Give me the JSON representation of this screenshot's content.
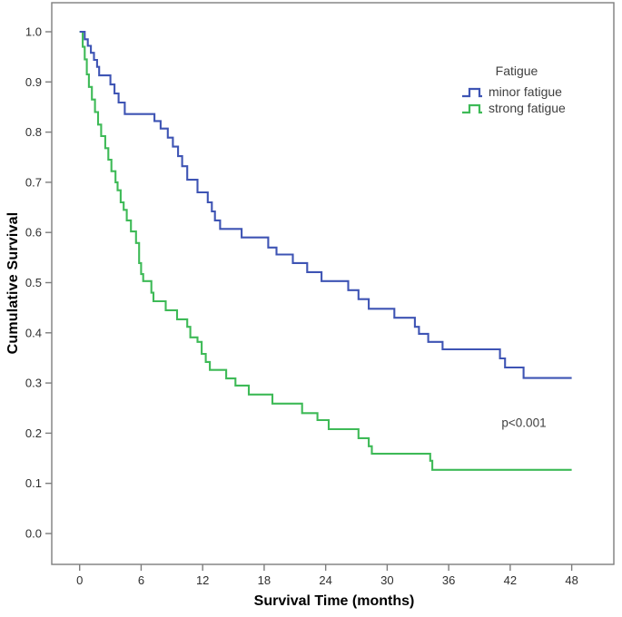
{
  "figure": {
    "y_axis_title": "Cumulative Survival",
    "x_axis_title": "Survival Time (months)",
    "annotation_text": "p<0.001",
    "legend": {
      "title": "Fatigue",
      "entries": [
        {
          "label": "minor fatigue",
          "color": "#3e54b4"
        },
        {
          "label": "strong fatigue",
          "color": "#3eba57"
        }
      ]
    },
    "colors": {
      "frame": "#7d7d7d",
      "tick": "#7d7d7d",
      "tick_label": "#2e2e2e",
      "annotation": "#3f3f3f",
      "background": "#ffffff",
      "minor_fatigue_blue": "#3e54b4",
      "strong_fatigue_green": "#3eba57"
    }
  },
  "chart_data": {
    "type": "line",
    "subtype": "kaplan-meier-step",
    "title": "",
    "xlabel": "Survival Time (months)",
    "ylabel": "Cumulative Survival",
    "xlim": [
      0,
      48
    ],
    "ylim": [
      0.0,
      1.0
    ],
    "x_ticks": [
      0,
      6,
      12,
      18,
      24,
      30,
      36,
      42,
      48
    ],
    "y_ticks": [
      "0.0",
      "0.1",
      "0.2",
      "0.3",
      "0.4",
      "0.5",
      "0.6",
      "0.7",
      "0.8",
      "0.9",
      "1.0"
    ],
    "grid": false,
    "legend_position": "inside-top-right",
    "annotation": {
      "text": "p<0.001",
      "x_month": 43.3,
      "y_survival": 0.22
    },
    "series": [
      {
        "name": "minor fatigue",
        "color": "#3e54b4",
        "end_month": 48,
        "steps": [
          [
            0,
            1.0
          ],
          [
            0.5,
            0.985
          ],
          [
            0.8,
            0.972
          ],
          [
            1.1,
            0.958
          ],
          [
            1.4,
            0.944
          ],
          [
            1.7,
            0.93
          ],
          [
            1.9,
            0.913
          ],
          [
            3.0,
            0.895
          ],
          [
            3.4,
            0.877
          ],
          [
            3.8,
            0.859
          ],
          [
            4.4,
            0.836
          ],
          [
            7.3,
            0.822
          ],
          [
            7.9,
            0.807
          ],
          [
            8.6,
            0.789
          ],
          [
            9.1,
            0.771
          ],
          [
            9.6,
            0.752
          ],
          [
            10.0,
            0.732
          ],
          [
            10.5,
            0.705
          ],
          [
            11.5,
            0.68
          ],
          [
            12.5,
            0.66
          ],
          [
            12.9,
            0.642
          ],
          [
            13.2,
            0.624
          ],
          [
            13.7,
            0.607
          ],
          [
            15.8,
            0.59
          ],
          [
            18.4,
            0.57
          ],
          [
            19.2,
            0.556
          ],
          [
            20.8,
            0.539
          ],
          [
            22.2,
            0.521
          ],
          [
            23.6,
            0.503
          ],
          [
            26.2,
            0.485
          ],
          [
            27.2,
            0.467
          ],
          [
            28.2,
            0.448
          ],
          [
            30.7,
            0.43
          ],
          [
            32.7,
            0.412
          ],
          [
            33.1,
            0.398
          ],
          [
            34.0,
            0.382
          ],
          [
            35.4,
            0.367
          ],
          [
            41.0,
            0.349
          ],
          [
            41.5,
            0.331
          ],
          [
            43.3,
            0.31
          ]
        ]
      },
      {
        "name": "strong fatigue",
        "color": "#3eba57",
        "end_month": 48,
        "steps": [
          [
            0,
            1.0
          ],
          [
            0.3,
            0.97
          ],
          [
            0.5,
            0.945
          ],
          [
            0.7,
            0.915
          ],
          [
            0.9,
            0.89
          ],
          [
            1.2,
            0.865
          ],
          [
            1.5,
            0.84
          ],
          [
            1.8,
            0.815
          ],
          [
            2.1,
            0.792
          ],
          [
            2.5,
            0.768
          ],
          [
            2.8,
            0.745
          ],
          [
            3.1,
            0.722
          ],
          [
            3.5,
            0.7
          ],
          [
            3.7,
            0.684
          ],
          [
            4.0,
            0.66
          ],
          [
            4.3,
            0.645
          ],
          [
            4.6,
            0.624
          ],
          [
            5.0,
            0.602
          ],
          [
            5.5,
            0.579
          ],
          [
            5.8,
            0.539
          ],
          [
            6.0,
            0.517
          ],
          [
            6.2,
            0.503
          ],
          [
            7.0,
            0.48
          ],
          [
            7.2,
            0.463
          ],
          [
            8.4,
            0.445
          ],
          [
            9.5,
            0.427
          ],
          [
            10.5,
            0.412
          ],
          [
            10.8,
            0.391
          ],
          [
            11.5,
            0.382
          ],
          [
            11.9,
            0.358
          ],
          [
            12.3,
            0.342
          ],
          [
            12.7,
            0.326
          ],
          [
            14.3,
            0.309
          ],
          [
            15.2,
            0.295
          ],
          [
            16.5,
            0.277
          ],
          [
            18.8,
            0.259
          ],
          [
            21.7,
            0.24
          ],
          [
            23.2,
            0.226
          ],
          [
            24.3,
            0.208
          ],
          [
            27.2,
            0.19
          ],
          [
            28.2,
            0.174
          ],
          [
            28.5,
            0.159
          ],
          [
            34.2,
            0.145
          ],
          [
            34.4,
            0.127
          ]
        ]
      }
    ]
  }
}
